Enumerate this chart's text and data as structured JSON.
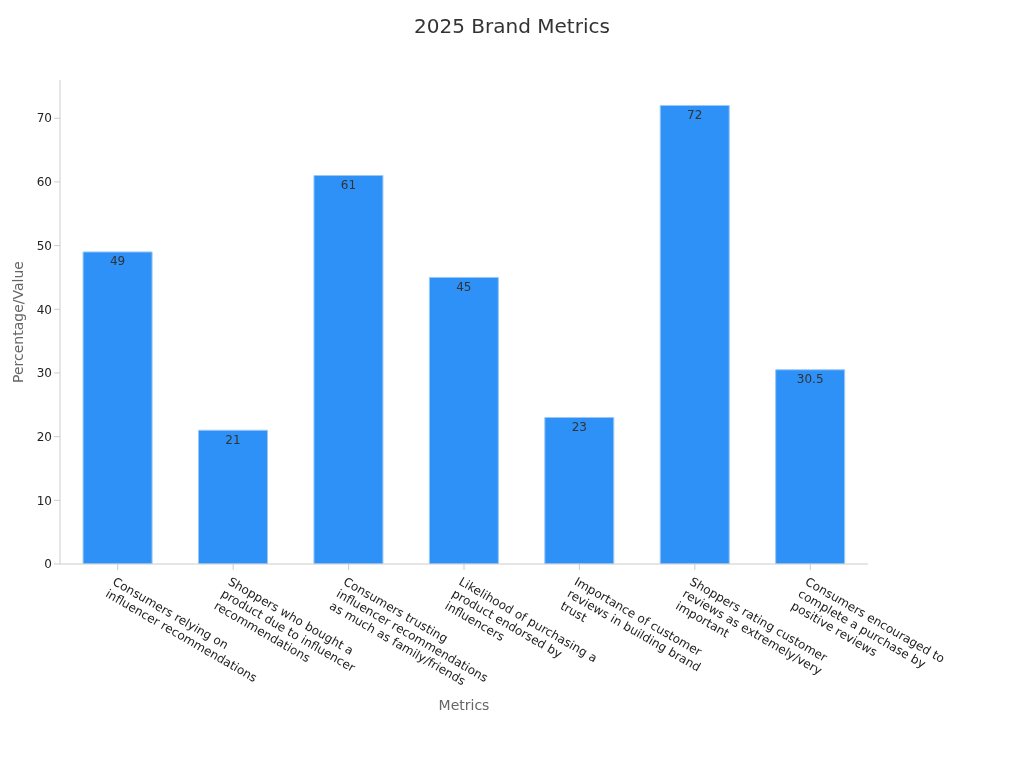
{
  "chart_data": {
    "type": "bar",
    "title": "2025 Brand Metrics",
    "xlabel": "Metrics",
    "ylabel": "Percentage/Value",
    "categories": [
      "Consumers relying on influencer recommendations",
      "Shoppers who bought a product due to influencer recommendations",
      "Consumers trusting influencer recommendations as much as family/friends",
      "Likelihood of purchasing a product endorsed by influencers",
      "Importance of customer reviews in building brand trust",
      "Shoppers rating customer reviews as extremely/very important",
      "Consumers encouraged to complete a purchase by positive reviews"
    ],
    "values": [
      49,
      21,
      61,
      45,
      23,
      72,
      30.5
    ],
    "color": "#2d91f7",
    "ylim": [
      0,
      76
    ],
    "yticks": [
      0,
      10,
      20,
      30,
      40,
      50,
      60,
      70
    ],
    "grid": false,
    "legend": false,
    "data_labels": true
  }
}
